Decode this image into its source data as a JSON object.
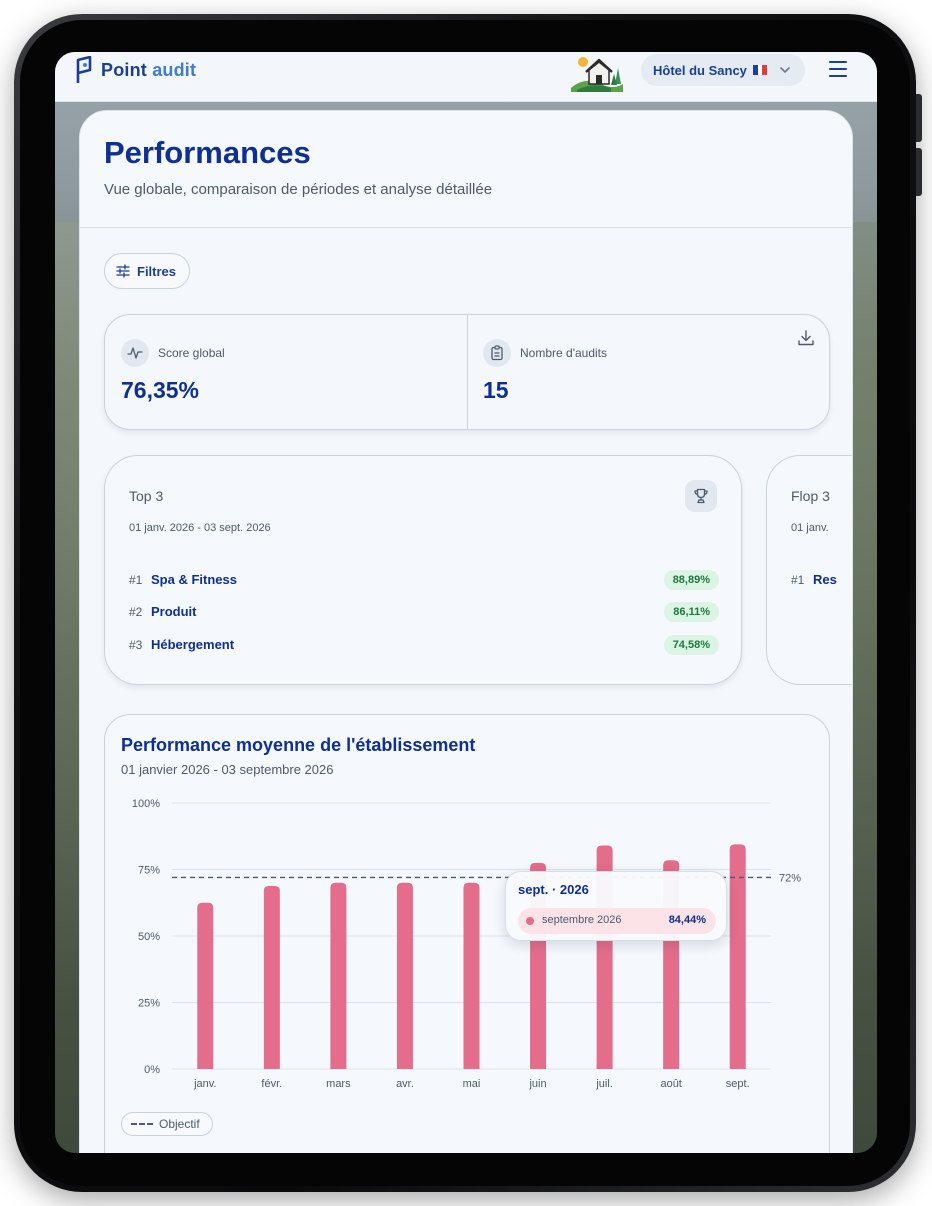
{
  "brand": {
    "name_part1": "Point",
    "name_part2": "audit"
  },
  "hotel": {
    "name": "Hôtel du Sancy",
    "flag": {
      "colors": [
        "#1d3f9e",
        "#ffffff",
        "#e23b3b"
      ]
    }
  },
  "icons": {
    "logo": "point-audit-logo-icon",
    "hotel": "hotel-house-icon",
    "chevron": "chevron-down-icon",
    "menu": "menu-icon",
    "filters": "sliders-icon",
    "score": "activity-icon",
    "audits": "clipboard-icon",
    "download": "download-icon",
    "trophy": "trophy-icon"
  },
  "page": {
    "title": "Performances",
    "subtitle": "Vue globale, comparaison de périodes et analyse détaillée"
  },
  "filters": {
    "label": "Filtres"
  },
  "kpis": {
    "score": {
      "label": "Score global",
      "value": "76,35%"
    },
    "audits": {
      "label": "Nombre d'audits",
      "value": "15"
    }
  },
  "top3": {
    "title": "Top 3",
    "date_range": "01 janv. 2026 - 03 sept. 2026",
    "items": [
      {
        "rank": "#1",
        "name": "Spa & Fitness",
        "score": "88,89%"
      },
      {
        "rank": "#2",
        "name": "Produit",
        "score": "86,11%"
      },
      {
        "rank": "#3",
        "name": "Hébergement",
        "score": "74,58%"
      }
    ]
  },
  "flop3": {
    "title": "Flop 3",
    "date_range": "01 janv.",
    "items": [
      {
        "rank": "#1",
        "name": "Res"
      }
    ]
  },
  "performance_chart": {
    "title": "Performance moyenne de l'établissement",
    "date_range": "01 janvier 2026 - 03 septembre 2026",
    "tooltip": {
      "title": "sept. · 2026",
      "label": "septembre 2026",
      "value": "84,44%"
    },
    "legend": {
      "objective": "Objectif"
    },
    "objective_label": "72%"
  },
  "colors": {
    "primary": "#0e2f93",
    "bar": "#e36d8a",
    "badge_bg": "#dcf4e4",
    "badge_text": "#1c7a40"
  },
  "chart_data": {
    "type": "bar",
    "title": "Performance moyenne de l'établissement",
    "subtitle": "01 janvier 2026 - 03 septembre 2026",
    "categories": [
      "janv.",
      "févr.",
      "mars",
      "avr.",
      "mai",
      "juin",
      "juil.",
      "août",
      "sept."
    ],
    "values": [
      62.5,
      68.8,
      70.0,
      70.0,
      70.0,
      77.5,
      84.0,
      78.5,
      84.44
    ],
    "ylim": [
      0,
      100
    ],
    "yticks": [
      "0%",
      "25%",
      "50%",
      "75%",
      "100%"
    ],
    "ytick_values": [
      0,
      25,
      50,
      75,
      100
    ],
    "reference_line": {
      "name": "Objectif",
      "value": 72,
      "label": "72%"
    },
    "grid": true,
    "legend": "bottom-left"
  }
}
